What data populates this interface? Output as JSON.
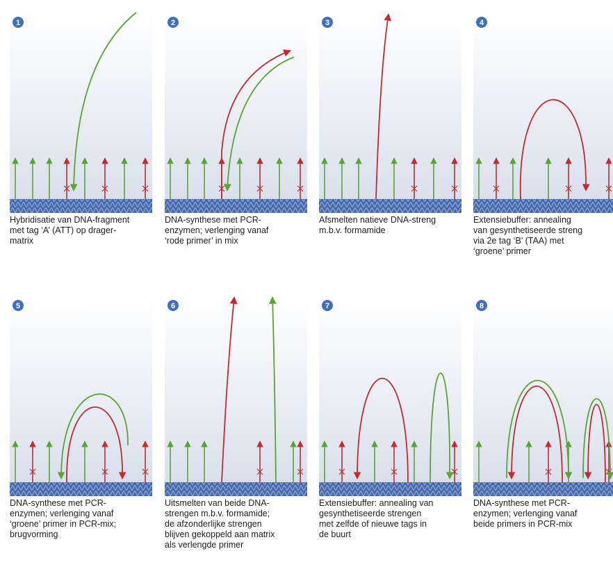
{
  "panels": [
    {
      "number": "1",
      "caption_lines": [
        "Hybridisatie van DNA-fragment",
        "met tag ‘A’ (ATT) op drager-",
        "matrix"
      ]
    },
    {
      "number": "2",
      "caption_lines": [
        "DNA-synthese met PCR-",
        "enzymen; verlenging vanaf",
        "‘rode primer’ in mix"
      ]
    },
    {
      "number": "3",
      "caption_lines": [
        "Afsmelten natieve DNA-streng",
        "m.b.v. formamide"
      ]
    },
    {
      "number": "4",
      "caption_lines": [
        "Extensiebuffer: annealing",
        "van gesynthetiseerde streng",
        "via 2e tag ‘B’ (TAA) met",
        "‘groene’ primer"
      ]
    },
    {
      "number": "5",
      "caption_lines": [
        "DNA-synthese met PCR-",
        "enzymen; verlenging vanaf",
        "‘groene’ primer in PCR-mix;",
        "brugvorming"
      ]
    },
    {
      "number": "6",
      "caption_lines": [
        "Uitsmelten van beide DNA-",
        "strengen m.b.v. formamide;",
        "de afzonderlijke strengen",
        "blijven gekoppeld aan matrix",
        "als verlengde primer"
      ]
    },
    {
      "number": "7",
      "caption_lines": [
        "Extensiebuffer: annealing van",
        "gesynthetiseerde strengen",
        "met zelfde of nieuwe tags in",
        "de buurt"
      ]
    },
    {
      "number": "8",
      "caption_lines": [
        "DNA-synthese met PCR-",
        "enzymen; verlenging vanaf",
        "beide primers in PCR-mix"
      ]
    }
  ]
}
